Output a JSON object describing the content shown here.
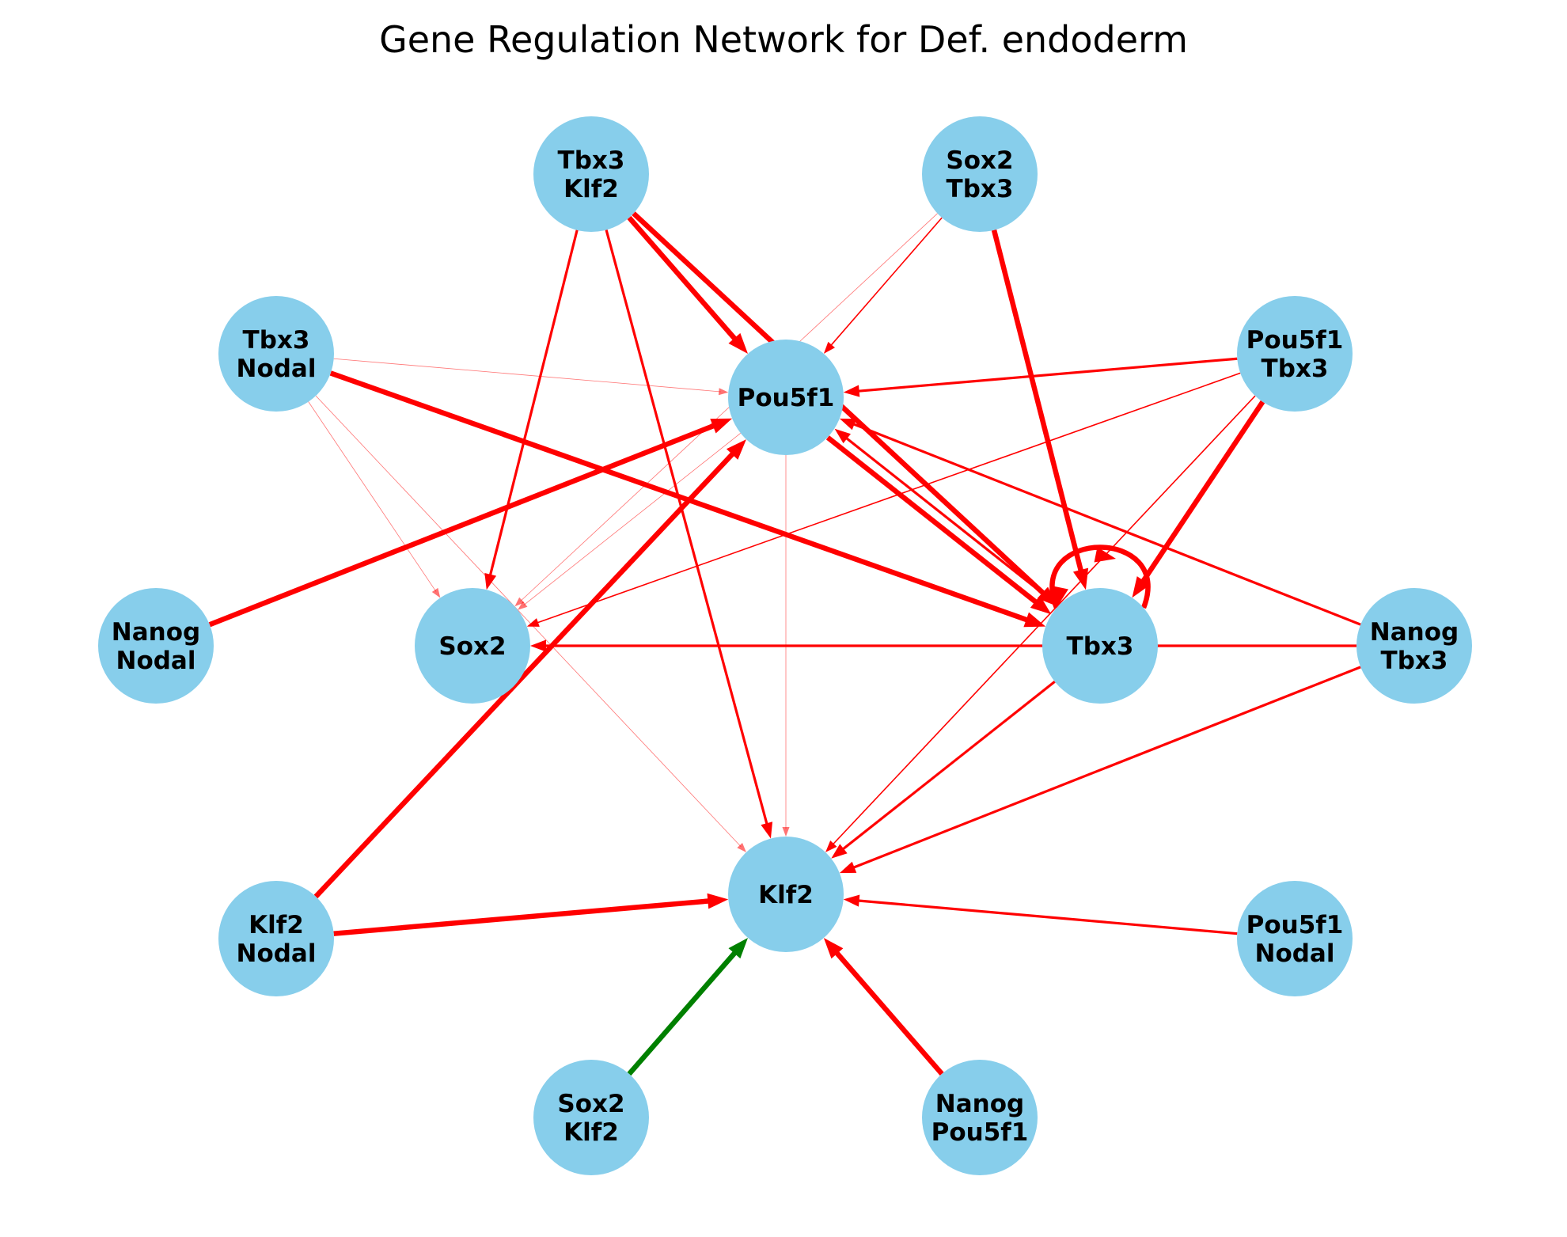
{
  "title": "Gene Regulation Network for Def. endoderm",
  "colors": {
    "node_fill": "#87CEEB",
    "activation": "#FF0000",
    "alt_edge": "#008000",
    "label": "#000000"
  },
  "nodes": [
    {
      "id": "pou5f1",
      "lines": [
        "Pou5f1"
      ]
    },
    {
      "id": "klf2",
      "lines": [
        "Klf2"
      ]
    },
    {
      "id": "sox2",
      "lines": [
        "Sox2"
      ]
    },
    {
      "id": "tbx3",
      "lines": [
        "Tbx3"
      ]
    },
    {
      "id": "tbx3_klf2",
      "lines": [
        "Tbx3",
        "Klf2"
      ]
    },
    {
      "id": "sox2_tbx3",
      "lines": [
        "Sox2",
        "Tbx3"
      ]
    },
    {
      "id": "tbx3_nodal",
      "lines": [
        "Tbx3",
        "Nodal"
      ]
    },
    {
      "id": "pou5f1_tbx3",
      "lines": [
        "Pou5f1",
        "Tbx3"
      ]
    },
    {
      "id": "nanog_nodal",
      "lines": [
        "Nanog",
        "Nodal"
      ]
    },
    {
      "id": "nanog_tbx3",
      "lines": [
        "Nanog",
        "Tbx3"
      ]
    },
    {
      "id": "klf2_nodal",
      "lines": [
        "Klf2",
        "Nodal"
      ]
    },
    {
      "id": "pou5f1_nodal",
      "lines": [
        "Pou5f1",
        "Nodal"
      ]
    },
    {
      "id": "sox2_klf2",
      "lines": [
        "Sox2",
        "Klf2"
      ]
    },
    {
      "id": "nanog_pou5f1",
      "lines": [
        "Nanog",
        "Pou5f1"
      ]
    }
  ],
  "edges": [
    {
      "source": "tbx3_klf2",
      "target": "pou5f1",
      "weight": "strong",
      "color": "red"
    },
    {
      "source": "tbx3_klf2",
      "target": "tbx3",
      "weight": "strong",
      "color": "red"
    },
    {
      "source": "tbx3_klf2",
      "target": "sox2",
      "weight": "medium",
      "color": "red"
    },
    {
      "source": "tbx3_klf2",
      "target": "klf2",
      "weight": "medium",
      "color": "red"
    },
    {
      "source": "sox2_tbx3",
      "target": "pou5f1",
      "weight": "thin",
      "color": "red"
    },
    {
      "source": "sox2_tbx3",
      "target": "tbx3",
      "weight": "strong",
      "color": "red"
    },
    {
      "source": "sox2_tbx3",
      "target": "sox2",
      "weight": "faint",
      "color": "red"
    },
    {
      "source": "tbx3_nodal",
      "target": "pou5f1",
      "weight": "faint",
      "color": "red"
    },
    {
      "source": "tbx3_nodal",
      "target": "tbx3",
      "weight": "strong",
      "color": "red"
    },
    {
      "source": "tbx3_nodal",
      "target": "sox2",
      "weight": "faint",
      "color": "red"
    },
    {
      "source": "tbx3_nodal",
      "target": "klf2",
      "weight": "faint",
      "color": "red"
    },
    {
      "source": "pou5f1_tbx3",
      "target": "pou5f1",
      "weight": "medium",
      "color": "red"
    },
    {
      "source": "pou5f1_tbx3",
      "target": "sox2",
      "weight": "thin",
      "color": "red"
    },
    {
      "source": "pou5f1_tbx3",
      "target": "tbx3",
      "weight": "strong",
      "color": "red"
    },
    {
      "source": "pou5f1_tbx3",
      "target": "klf2",
      "weight": "thin",
      "color": "red"
    },
    {
      "source": "nanog_nodal",
      "target": "pou5f1",
      "weight": "strong",
      "color": "red"
    },
    {
      "source": "klf2_nodal",
      "target": "pou5f1",
      "weight": "strong",
      "color": "red"
    },
    {
      "source": "klf2_nodal",
      "target": "klf2",
      "weight": "strong",
      "color": "red"
    },
    {
      "source": "nanog_tbx3",
      "target": "pou5f1",
      "weight": "medium",
      "color": "red"
    },
    {
      "source": "nanog_tbx3",
      "target": "sox2",
      "weight": "medium",
      "color": "red"
    },
    {
      "source": "nanog_tbx3",
      "target": "klf2",
      "weight": "medium",
      "color": "red"
    },
    {
      "source": "pou5f1_nodal",
      "target": "klf2",
      "weight": "medium",
      "color": "red"
    },
    {
      "source": "sox2_klf2",
      "target": "klf2",
      "weight": "strong",
      "color": "green"
    },
    {
      "source": "nanog_pou5f1",
      "target": "klf2",
      "weight": "strong",
      "color": "red"
    },
    {
      "source": "pou5f1",
      "target": "tbx3",
      "weight": "strong",
      "color": "red"
    },
    {
      "source": "tbx3",
      "target": "pou5f1",
      "weight": "medium",
      "color": "red"
    },
    {
      "source": "tbx3",
      "target": "klf2",
      "weight": "medium",
      "color": "red"
    },
    {
      "source": "pou5f1",
      "target": "sox2",
      "weight": "faint",
      "color": "red"
    },
    {
      "source": "pou5f1",
      "target": "klf2",
      "weight": "faint",
      "color": "red"
    },
    {
      "source": "tbx3",
      "target": "tbx3",
      "weight": "strong",
      "color": "red"
    }
  ]
}
